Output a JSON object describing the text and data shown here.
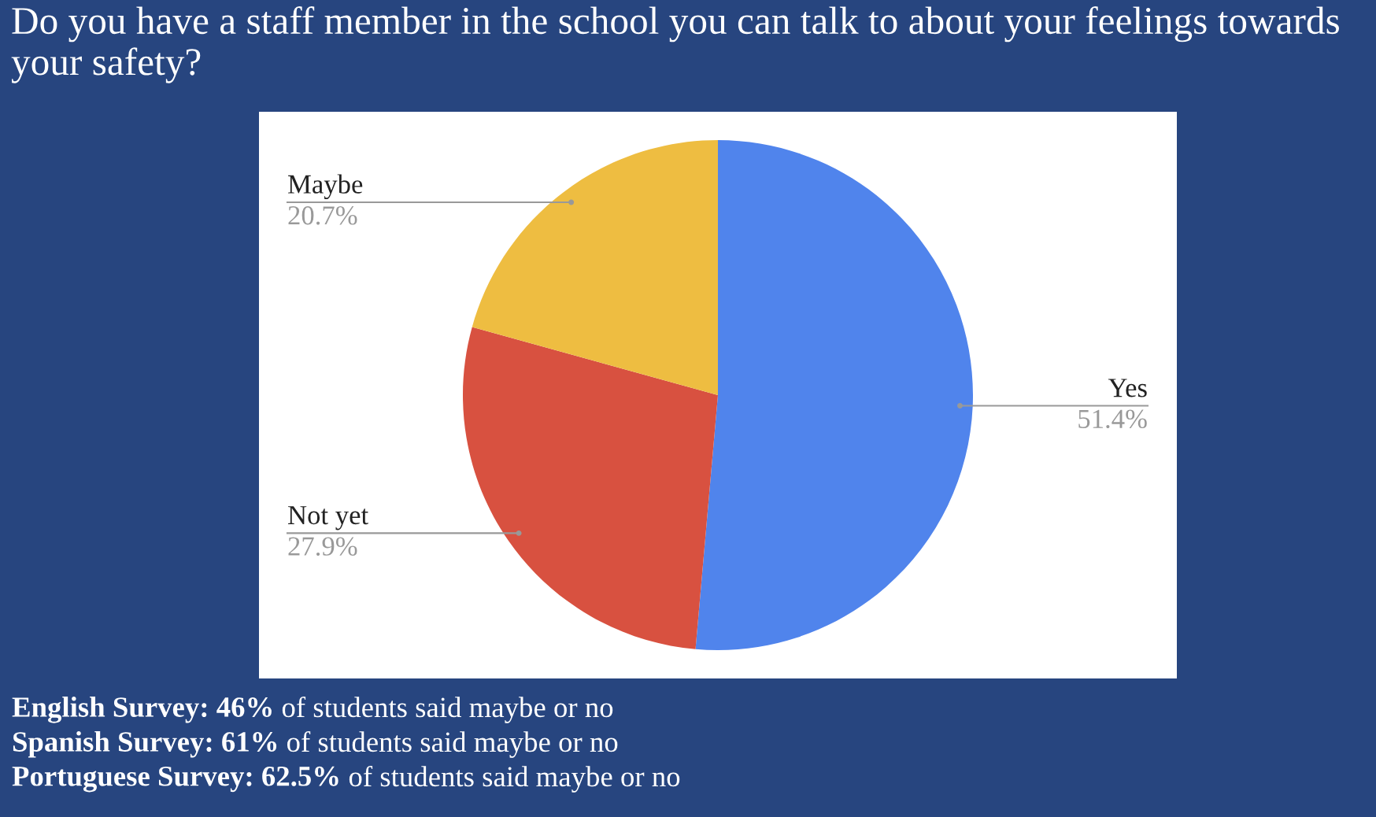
{
  "chart_data": {
    "type": "pie",
    "title": "Do you have a staff member in the school you can talk to about your feelings towards your safety?",
    "categories": [
      "Yes",
      "Not yet",
      "Maybe"
    ],
    "values": [
      51.4,
      27.9,
      20.7
    ],
    "value_labels": [
      "51.4%",
      "27.9%",
      "20.7%"
    ],
    "colors": [
      "#5084ec",
      "#d85140",
      "#eebd41"
    ],
    "legend": false,
    "annotations": [
      "English Survey: 46% of students said maybe or no",
      "Spanish Survey: 61% of students said maybe or no",
      "Portuguese Survey: 62.5% of students said maybe or no"
    ]
  }
}
